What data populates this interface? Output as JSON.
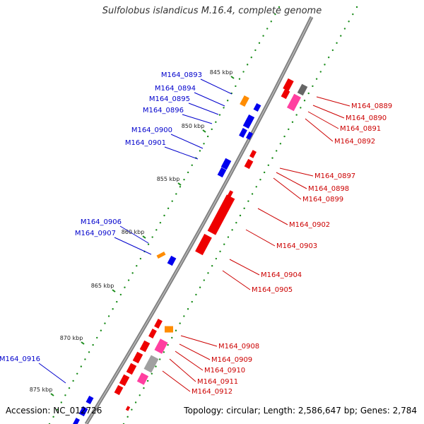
{
  "title": "Sulfolobus islandicus M.16.4, complete genome",
  "footer": {
    "accession_label": "Accession:",
    "accession": "NC_012726",
    "topology_label": "Topology:",
    "topology": "circular;",
    "length_label": "Length:",
    "length": "2,586,647 bp;",
    "genes_label": "Genes:",
    "genes": "2,784"
  },
  "colors": {
    "backbone": "#7f7f7f",
    "forward_label": "#0000cc",
    "reverse_label": "#cc0000",
    "forward_gene": "#0000ee",
    "reverse_gene": "#ee0000",
    "rna_gene": "#ff8c00",
    "pseudo_gene": "#ff3fa0",
    "grey_gene": "#a0a0a0",
    "tick_dot": "#1a8c1a"
  },
  "kbp_ticks": [
    "845 kbp",
    "850 kbp",
    "855 kbp",
    "860 kbp",
    "865 kbp",
    "870 kbp",
    "875 kbp"
  ],
  "forward_labels": [
    "M164_0893",
    "M164_0894",
    "M164_0895",
    "M164_0896",
    "M164_0900",
    "M164_0901",
    "M164_0906",
    "M164_0907",
    "M164_0916"
  ],
  "reverse_labels": [
    "M164_0889",
    "M164_0890",
    "M164_0891",
    "M164_0892",
    "M164_0897",
    "M164_0898",
    "M164_0899",
    "M164_0902",
    "M164_0903",
    "M164_0904",
    "M164_0905",
    "M164_0908",
    "M164_0909",
    "M164_0910",
    "M164_0911",
    "M164_0912"
  ]
}
